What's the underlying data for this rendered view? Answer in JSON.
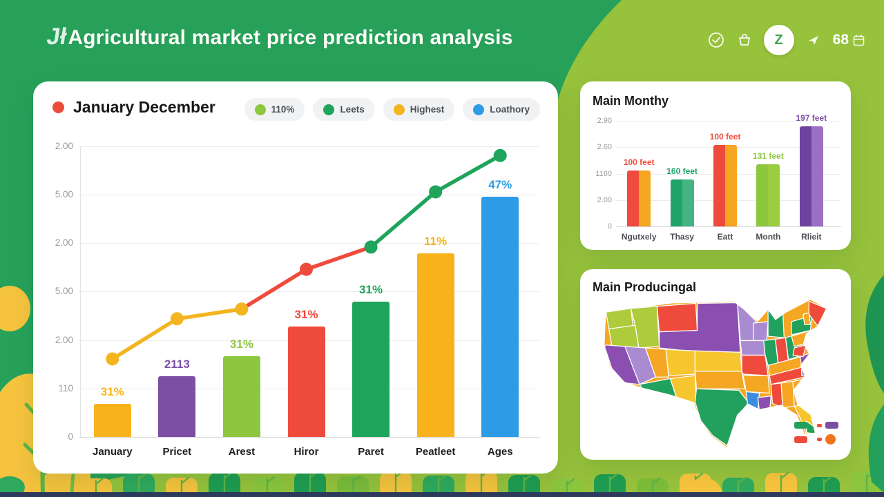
{
  "header": {
    "logo": "Jł",
    "title": "Agricultural market price prediction analysis",
    "count": "68",
    "icons": [
      "check-circle",
      "basket",
      "profile",
      "plane",
      "calendar"
    ]
  },
  "main_card": {
    "title": "January December",
    "dot_color": "#EF4B3C"
  },
  "monthly_card": {
    "title": "Main Monthy"
  },
  "map_card": {
    "title": "Main Producingal",
    "palette": [
      "#8A4FB0",
      "#A88BD0",
      "#AECB3C",
      "#F5A623",
      "#F7C52D",
      "#21A15D",
      "#EF4B3C",
      "#3B8EDE"
    ],
    "legend": [
      {
        "shape": "rect",
        "color": "#21A15D"
      },
      {
        "shape": "rect",
        "color": "#7C4FA5"
      },
      {
        "shape": "rect",
        "color": "#EF4B3C"
      },
      {
        "shape": "circle",
        "color": "#F07420"
      }
    ]
  },
  "chart_data": [
    {
      "type": "bar",
      "title": "January December",
      "legend": [
        {
          "label": "110%",
          "color": "#8DC63F"
        },
        {
          "label": "Leets",
          "color": "#1FA45B"
        },
        {
          "label": "Highest",
          "color": "#F3B51F"
        },
        {
          "label": "Loathory",
          "color": "#2E9BE6"
        }
      ],
      "categories": [
        "January",
        "Pricet",
        "Arest",
        "Hiror",
        "Paret",
        "Peatleet",
        "Ages"
      ],
      "y_ticks": [
        "0",
        "110",
        "2.00",
        "5.00",
        "2.00",
        "5.00",
        "2.00"
      ],
      "ylim": [
        0,
        6
      ],
      "grid": true,
      "bars": {
        "values": [
          0.68,
          1.25,
          1.67,
          2.28,
          2.79,
          3.79,
          4.96
        ],
        "labels": [
          "31%",
          "2113",
          "31%",
          "31%",
          "31%",
          "11%",
          "47%"
        ],
        "colors": [
          "#F8B31C",
          "#7C4FA5",
          "#8DC63F",
          "#EF4B3C",
          "#1EA45B",
          "#F8B31C",
          "#2E9BE6"
        ]
      },
      "line": {
        "values": [
          1.61,
          2.44,
          2.64,
          3.46,
          3.92,
          5.06,
          5.81
        ],
        "point_colors": [
          "#F3B51F",
          "#F3B51F",
          "#F3B51F",
          "#EF4B3C",
          "#1EA45B",
          "#1EA45B",
          "#1EA45B"
        ],
        "segment_colors": [
          "#F3B51F",
          "#F3B51F",
          "#EF4B3C",
          "#EF4B3C",
          "#1EA45B",
          "#1EA45B"
        ]
      }
    },
    {
      "type": "bar",
      "title": "Main Monthy",
      "categories": [
        "Ngutxely",
        "Thasy",
        "Eatt",
        "Month",
        "Rlieit"
      ],
      "y_ticks": [
        "0",
        "2.00",
        "1160",
        "2.60",
        "2.90"
      ],
      "ylim": [
        0,
        4
      ],
      "grid": true,
      "values": [
        2.12,
        1.78,
        3.08,
        2.35,
        3.79
      ],
      "labels": [
        "100 feet",
        "160 feet",
        "100 feet",
        "131 feet",
        "197 feet"
      ],
      "label_colors": [
        "#EF4B3C",
        "#1FA468",
        "#EF4B3C",
        "#8DC63F",
        "#7C4FA5"
      ],
      "colors_left": [
        "#EF4B3C",
        "#1FA468",
        "#EF4B3C",
        "#8DC63F",
        "#6E43A0"
      ],
      "colors_right": [
        "#F5A623",
        "#45B483",
        "#F5A623",
        "#9ACD3F",
        "#9A6FC4"
      ]
    },
    {
      "type": "map",
      "title": "Main Producingal",
      "region": "United States choropleth (decorative state colors)"
    }
  ]
}
